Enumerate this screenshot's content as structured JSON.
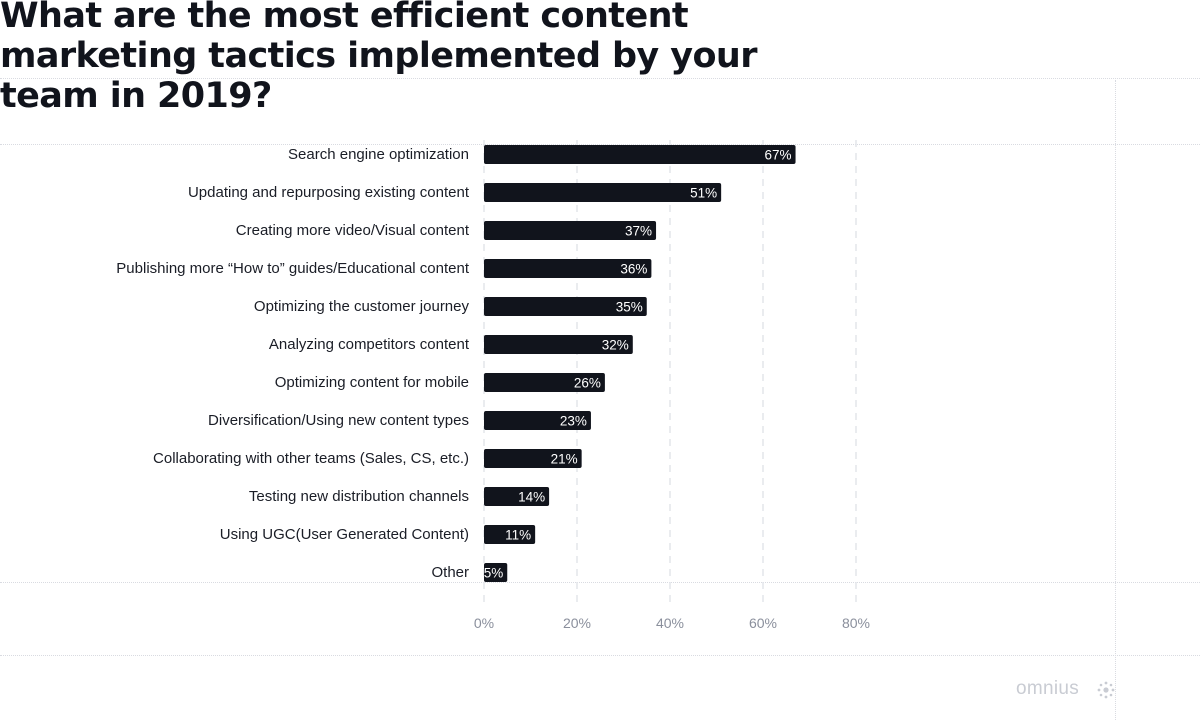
{
  "title": "What are the most efficient content marketing tactics implemented by your team in 2019?",
  "brand": {
    "name": "omnius",
    "icon": "sun-dots-icon",
    "color": "#c9ccd3"
  },
  "colors": {
    "bar": "#11141c",
    "value_text": "#ffffff",
    "grid": "#e3e5ea",
    "tick_text": "#8a8f9c"
  },
  "chart_data": {
    "type": "bar",
    "orientation": "horizontal",
    "title": "What are the most efficient content marketing tactics implemented by your team in 2019?",
    "xlabel": "",
    "ylabel": "",
    "categories": [
      "Search engine optimization",
      "Updating and repurposing existing content",
      "Creating more video/Visual content",
      "Publishing more “How to” guides/Educational content",
      "Optimizing the customer journey",
      "Analyzing competitors content",
      "Optimizing content for mobile",
      "Diversification/Using new content types",
      "Collaborating with other teams (Sales, CS, etc.)",
      "Testing new distribution channels",
      "Using UGC(User Generated Content)",
      "Other"
    ],
    "values": [
      67,
      51,
      37,
      36,
      35,
      32,
      26,
      23,
      21,
      14,
      11,
      5
    ],
    "value_labels": [
      "67%",
      "51%",
      "37%",
      "36%",
      "35%",
      "32%",
      "26%",
      "23%",
      "21%",
      "14%",
      "11%",
      "5%"
    ],
    "xlim": [
      0,
      80
    ],
    "ticks": [
      0,
      20,
      40,
      60,
      80
    ],
    "tick_labels": [
      "0%",
      "20%",
      "40%",
      "60%",
      "80%"
    ],
    "grid": "vertical dashed",
    "legend": "none"
  }
}
